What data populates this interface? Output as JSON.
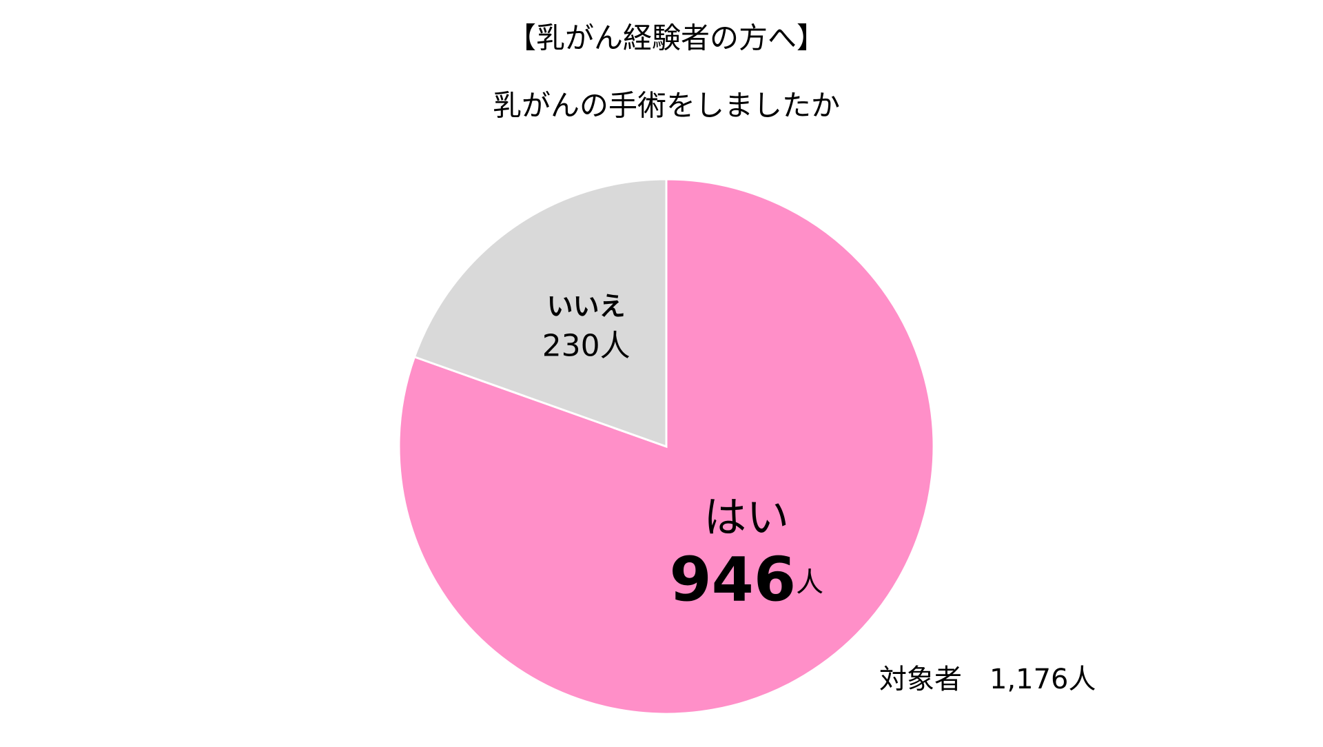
{
  "chart_data": {
    "type": "pie",
    "title": "【乳がん経験者の方へ】",
    "subtitle": "乳がんの手術をしましたか",
    "categories": [
      "はい",
      "いいえ"
    ],
    "values": [
      946,
      230
    ],
    "value_unit": "人",
    "colors": [
      "#ff8fc8",
      "#d9d9d9"
    ],
    "note": "対象者　1,176人"
  }
}
